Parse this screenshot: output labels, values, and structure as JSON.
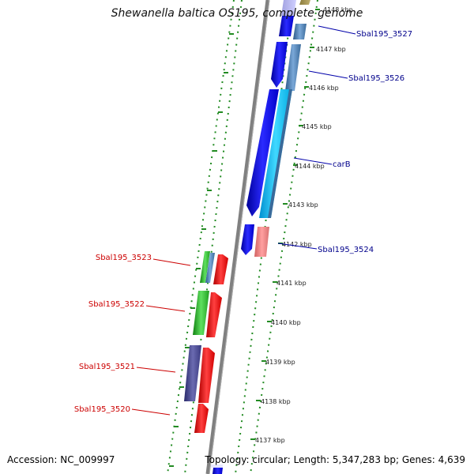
{
  "title": "Shewanella baltica OS195, complete genome",
  "footer": {
    "accession": "Accession: NC_009997",
    "summary": "Topology: circular; Length: 5,347,283 bp; Genes: 4,639"
  },
  "ticks": [
    "4148 kbp",
    "4147 kbp",
    "4146 kbp",
    "4145 kbp",
    "4144 kbp",
    "4143 kbp",
    "4142 kbp",
    "4141 kbp",
    "4140 kbp",
    "4139 kbp",
    "4138 kbp",
    "4137 kbp"
  ],
  "right_labels": [
    "Sbal195_3527",
    "Sbal195_3526",
    "carB",
    "Sbal195_3524"
  ],
  "left_labels": [
    "Sbal195_3523",
    "Sbal195_3522",
    "Sbal195_3521",
    "Sbal195_3520"
  ],
  "colors": {
    "forward_label": "#00008b",
    "reverse_label": "#cc0000",
    "backbone": "#808080",
    "track_dots": "#228b22"
  }
}
